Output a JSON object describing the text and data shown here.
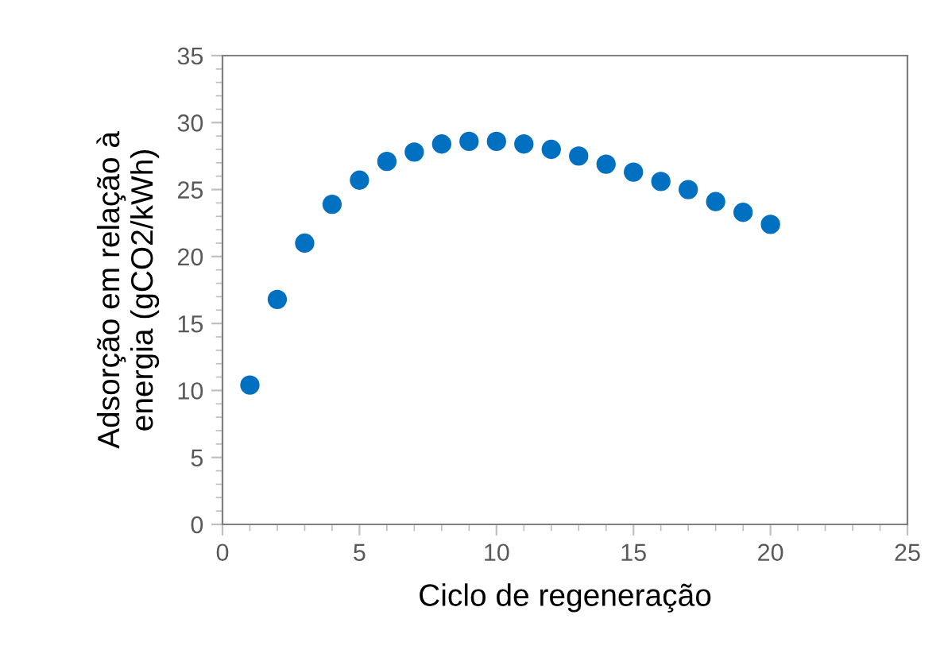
{
  "chart_data": {
    "type": "scatter",
    "xlabel": "Ciclo de regeneração",
    "ylabel": "Adsorção em relação à\nenergia (gCO2/kWh)",
    "x": [
      1,
      2,
      3,
      4,
      5,
      6,
      7,
      8,
      9,
      10,
      11,
      12,
      13,
      14,
      15,
      16,
      17,
      18,
      19,
      20
    ],
    "series": [
      {
        "color": "#0070c0",
        "values": [
          10.4,
          16.8,
          21.0,
          23.9,
          25.7,
          27.1,
          27.8,
          28.4,
          28.6,
          28.6,
          28.4,
          28.0,
          27.5,
          26.9,
          26.3,
          25.6,
          25.0,
          24.1,
          23.3,
          22.4
        ]
      }
    ],
    "xlim": [
      0,
      25
    ],
    "xticks": [
      0,
      5,
      10,
      15,
      20,
      25
    ],
    "ylim": [
      0,
      35
    ],
    "yticks": [
      0,
      5,
      10,
      15,
      20,
      25,
      30,
      35
    ],
    "grid": false,
    "legend": false,
    "marker": "circle"
  }
}
